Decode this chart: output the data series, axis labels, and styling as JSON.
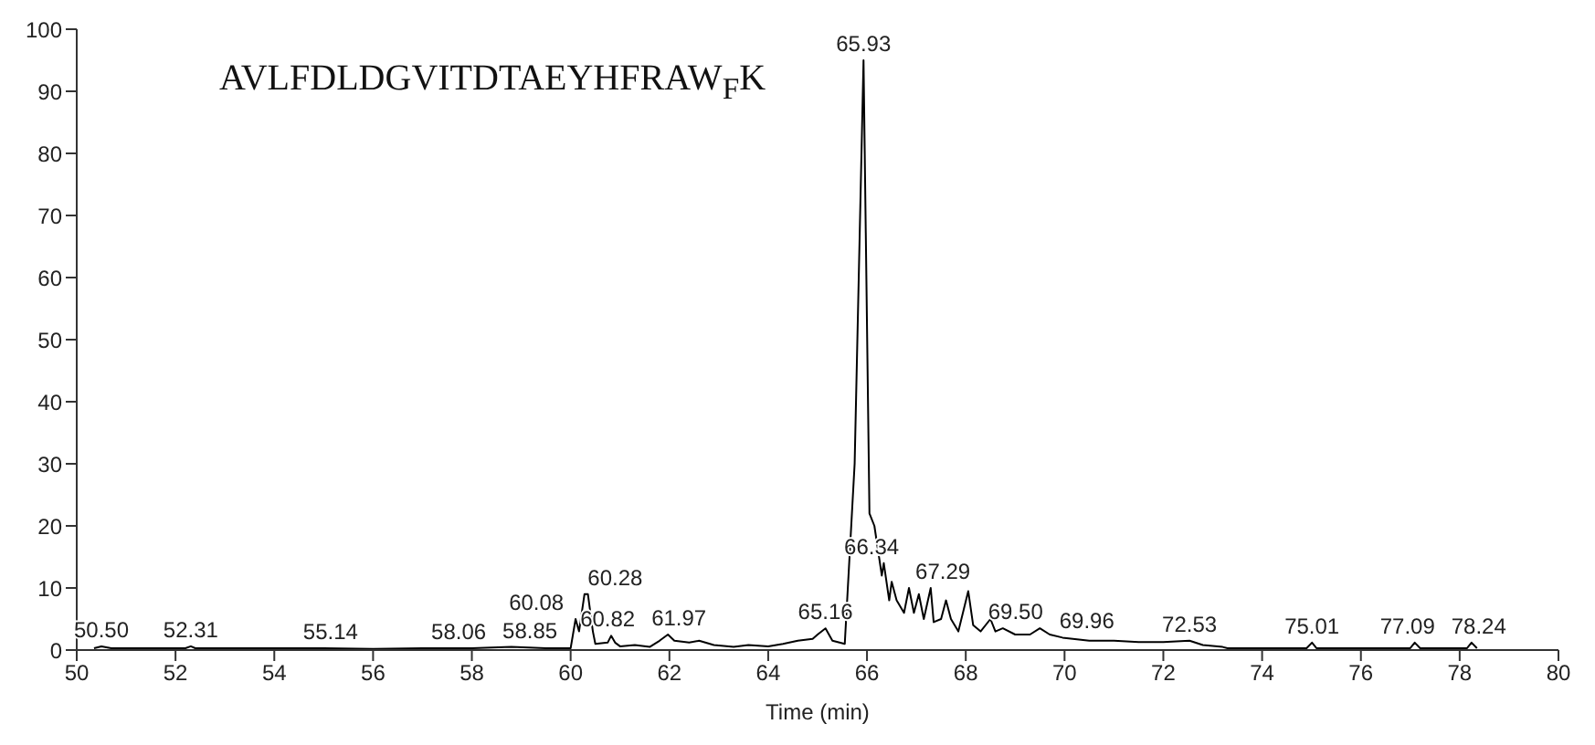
{
  "chart_data": {
    "type": "line",
    "title": "AVLFDLDGVITDTAEYHFRAW$_{F}$K",
    "xlabel": "Time (min)",
    "xlim": [
      50,
      80
    ],
    "xticks": [
      50,
      52,
      54,
      56,
      58,
      60,
      62,
      64,
      66,
      68,
      70,
      72,
      74,
      76,
      78,
      80
    ],
    "ylim": [
      0,
      100
    ],
    "yticks": [
      0,
      10,
      20,
      30,
      40,
      50,
      60,
      70,
      80,
      90,
      100
    ],
    "grid": false,
    "legend": false,
    "marker": "none",
    "line_style": "solid",
    "series": [
      {
        "color": "#000000",
        "x": [
          50.35,
          50.5,
          50.7,
          50.75,
          52.2,
          52.31,
          52.4,
          52.45,
          53.3,
          54,
          55,
          56,
          57,
          58,
          58.8,
          59.5,
          60.0,
          60.1,
          60.17,
          60.28,
          60.35,
          60.45,
          60.5,
          60.75,
          60.82,
          60.9,
          61.0,
          61.3,
          61.6,
          61.8,
          61.97,
          62.1,
          62.4,
          62.6,
          62.9,
          63.3,
          63.6,
          64.0,
          64.3,
          64.6,
          64.9,
          65.0,
          65.16,
          65.3,
          65.55,
          65.75,
          65.93,
          66.05,
          66.15,
          66.3,
          66.34,
          66.45,
          66.5,
          66.6,
          66.75,
          66.85,
          66.95,
          67.05,
          67.15,
          67.29,
          67.35,
          67.5,
          67.6,
          67.7,
          67.85,
          68.05,
          68.15,
          68.3,
          68.5,
          68.6,
          68.75,
          69.0,
          69.3,
          69.5,
          69.7,
          69.96,
          70.5,
          71.0,
          71.5,
          72.0,
          72.53,
          72.8,
          73.2,
          73.3,
          74.9,
          75.01,
          75.1,
          75.2,
          77.0,
          77.09,
          77.2,
          77.3,
          78.15,
          78.24,
          78.35
        ],
        "values": [
          0.3,
          0.6,
          0.3,
          0.3,
          0.3,
          0.6,
          0.3,
          0.3,
          0.3,
          0.3,
          0.3,
          0.2,
          0.3,
          0.3,
          0.5,
          0.3,
          0.3,
          5,
          3,
          9,
          9,
          3,
          1,
          1.2,
          2.3,
          1.2,
          0.6,
          0.8,
          0.5,
          1.5,
          2.5,
          1.5,
          1.2,
          1.5,
          0.8,
          0.5,
          0.8,
          0.6,
          1,
          1.5,
          1.8,
          2.5,
          3.5,
          1.5,
          1,
          30,
          95,
          22,
          20,
          12,
          14,
          8,
          11,
          8,
          6,
          10,
          6,
          9,
          5,
          10,
          4.5,
          5,
          8,
          5,
          3,
          9.5,
          4,
          3,
          5,
          3,
          3.5,
          2.5,
          2.5,
          3.5,
          2.5,
          2,
          1.5,
          1.5,
          1.3,
          1.3,
          1.5,
          0.8,
          0.5,
          0.3,
          0.3,
          1.2,
          0.3,
          0.3,
          0.3,
          1.2,
          0.3,
          0.3,
          0.3,
          1.2,
          0.3
        ]
      }
    ],
    "annotations": [
      {
        "text": "50.50",
        "x": 50.5,
        "y": 0.6
      },
      {
        "text": "52.31",
        "x": 52.31,
        "y": 0.6
      },
      {
        "text": "55.14",
        "x": 55.14,
        "y": 0.3
      },
      {
        "text": "58.06",
        "x": 58.06,
        "y": 0.3
      },
      {
        "text": "58.85",
        "x": 58.85,
        "y": 0.5
      },
      {
        "text": "60.08",
        "x": 60.08,
        "y": 5
      },
      {
        "text": "60.28",
        "x": 60.28,
        "y": 9
      },
      {
        "text": "60.82",
        "x": 60.82,
        "y": 2.3
      },
      {
        "text": "61.97",
        "x": 61.97,
        "y": 2.5
      },
      {
        "text": "65.16",
        "x": 65.16,
        "y": 3.5
      },
      {
        "text": "65.93",
        "x": 65.93,
        "y": 95
      },
      {
        "text": "66.34",
        "x": 66.34,
        "y": 14
      },
      {
        "text": "67.29",
        "x": 67.29,
        "y": 10
      },
      {
        "text": "69.50",
        "x": 69.5,
        "y": 3.5
      },
      {
        "text": "69.96",
        "x": 69.96,
        "y": 2
      },
      {
        "text": "72.53",
        "x": 72.53,
        "y": 1.5
      },
      {
        "text": "75.01",
        "x": 75.01,
        "y": 1.2
      },
      {
        "text": "77.09",
        "x": 77.09,
        "y": 1.2
      },
      {
        "text": "78.24",
        "x": 78.24,
        "y": 1.2
      }
    ]
  }
}
